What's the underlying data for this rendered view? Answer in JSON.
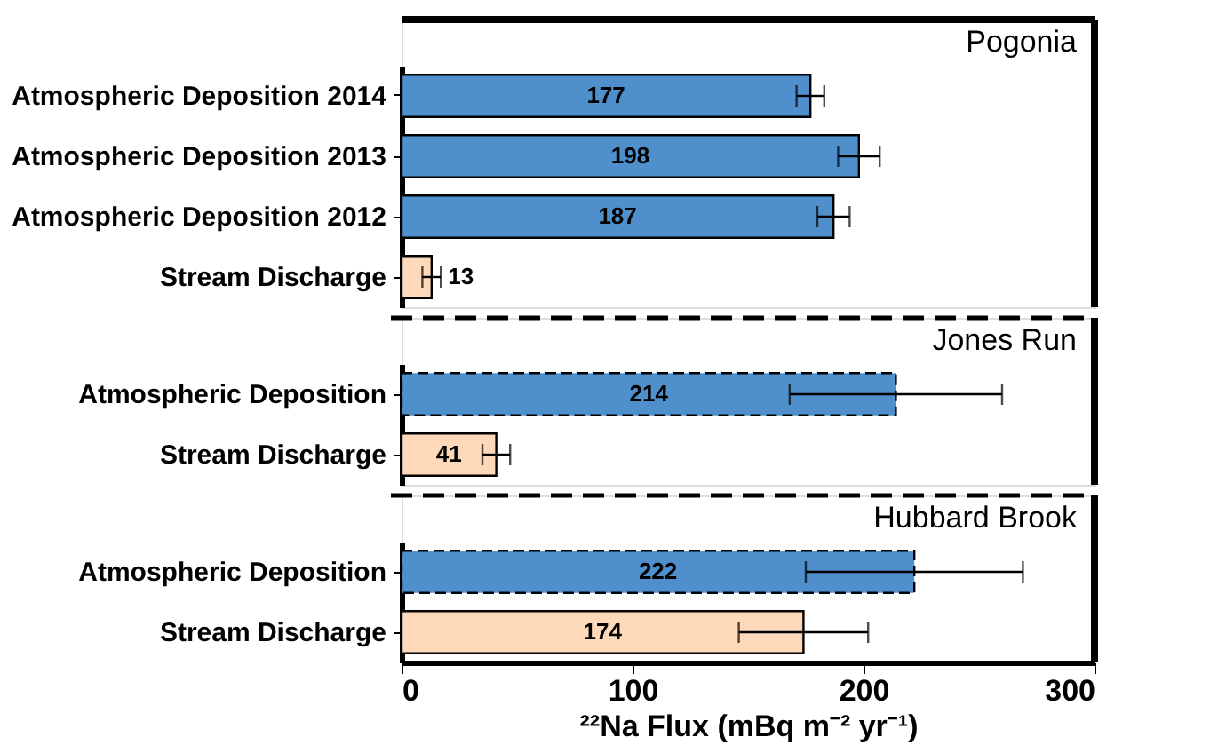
{
  "chart_data": [
    {
      "type": "bar",
      "orientation": "horizontal",
      "categories": [
        "Atmospheric Deposition 2014",
        "Atmospheric Deposition 2013",
        "Atmospheric Deposition 2012",
        "Stream Discharge"
      ],
      "series": [
        {
          "color": "#4f90cc",
          "line_style": "solid",
          "values": [
            177,
            198,
            187,
            null
          ],
          "errors": [
            6,
            9,
            7,
            null
          ]
        },
        {
          "color": "#fdd9b9",
          "line_style": "solid",
          "values": [
            null,
            null,
            null,
            13
          ],
          "errors": [
            null,
            null,
            null,
            4
          ]
        }
      ],
      "annotations": [
        "Pogonia"
      ],
      "xlim": [
        0,
        300
      ],
      "data_labels": true,
      "tick_labels": "y"
    },
    {
      "type": "bar",
      "orientation": "horizontal",
      "categories": [
        "Atmospheric Deposition",
        "Stream Discharge"
      ],
      "series": [
        {
          "color": "#4f90cc",
          "line_style": "dashed",
          "values": [
            214,
            null
          ],
          "errors": [
            46,
            null
          ]
        },
        {
          "color": "#fdd9b9",
          "line_style": "solid",
          "values": [
            null,
            41
          ],
          "errors": [
            null,
            6
          ]
        }
      ],
      "annotations": [
        "Jones Run"
      ],
      "xlim": [
        0,
        300
      ],
      "data_labels": true,
      "tick_labels": "y"
    },
    {
      "type": "bar",
      "orientation": "horizontal",
      "categories": [
        "Atmospheric Deposition",
        "Stream Discharge"
      ],
      "series": [
        {
          "color": "#4f90cc",
          "line_style": "dashed",
          "values": [
            222,
            null
          ],
          "errors": [
            47,
            null
          ]
        },
        {
          "color": "#fdd9b9",
          "line_style": "solid",
          "values": [
            null,
            174
          ],
          "errors": [
            null,
            28
          ]
        }
      ],
      "annotations": [
        "Hubbard Brook"
      ],
      "xlim": [
        0,
        300
      ],
      "xticks": [
        0,
        100,
        200,
        300
      ],
      "xlabel": "²²Na Flux (mBq m⁻² yr⁻¹)",
      "data_labels": true
    }
  ]
}
